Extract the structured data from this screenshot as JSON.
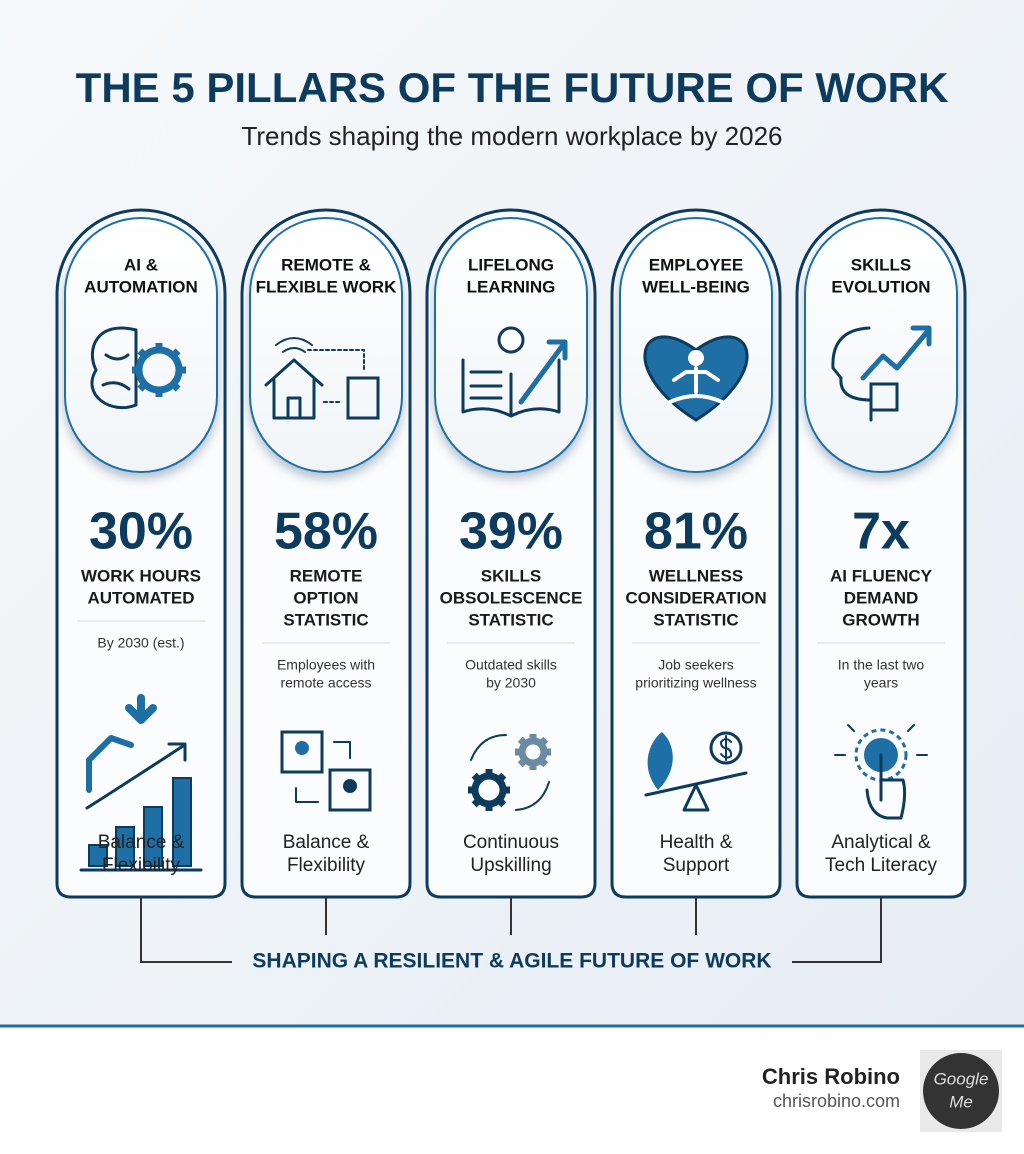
{
  "header": {
    "title": "THE 5 PILLARS OF THE FUTURE OF WORK",
    "subtitle": "Trends shaping the modern workplace by 2026"
  },
  "pillars": [
    {
      "title": [
        "AI &",
        "AUTOMATION"
      ],
      "stat": "30%",
      "label": [
        "WORK HOURS",
        "AUTOMATED"
      ],
      "note": [
        "By 2030 (est.)"
      ],
      "caption": [
        "Balance &",
        "Flexibility"
      ]
    },
    {
      "title": [
        "REMOTE &",
        "FLEXIBLE WORK"
      ],
      "stat": "58%",
      "label": [
        "REMOTE",
        "OPTION",
        "STATISTIC"
      ],
      "note": [
        "Employees with",
        "remote access"
      ],
      "caption": [
        "Balance &",
        "Flexibility"
      ]
    },
    {
      "title": [
        "LIFELONG",
        "LEARNING"
      ],
      "stat": "39%",
      "label": [
        "SKILLS",
        "OBSOLESCENCE",
        "STATISTIC"
      ],
      "note": [
        "Outdated skills",
        "by 2030"
      ],
      "caption": [
        "Continuous",
        "Upskilling"
      ]
    },
    {
      "title": [
        "EMPLOYEE",
        "WELL-BEING"
      ],
      "stat": "81%",
      "label": [
        "WELLNESS",
        "CONSIDERATION",
        "STATISTIC"
      ],
      "note": [
        "Job seekers",
        "prioritizing wellness"
      ],
      "caption": [
        "Health &",
        "Support"
      ]
    },
    {
      "title": [
        "SKILLS",
        "EVOLUTION"
      ],
      "stat": "7x",
      "label": [
        "AI FLUENCY",
        "DEMAND",
        "GROWTH"
      ],
      "note": [
        "In the last two",
        "years"
      ],
      "caption": [
        "Analytical &",
        "Tech Literacy"
      ]
    }
  ],
  "banner": "SHAPING A RESILIENT & AGILE FUTURE OF WORK",
  "footer": {
    "name": "Chris Robino",
    "website": "chrisrobino.com",
    "logo": [
      "Google",
      "Me"
    ]
  }
}
